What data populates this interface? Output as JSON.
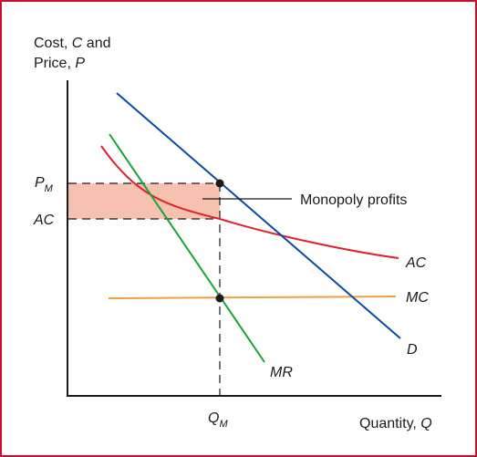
{
  "chart_data": {
    "type": "line",
    "title": "",
    "ylabel_line1": "Cost,",
    "ylabel_line1_var": "C",
    "ylabel_line1_tail": " and",
    "ylabel_line2": "Price,",
    "ylabel_line2_var": "P",
    "xlabel": "Quantity,",
    "xlabel_var": "Q",
    "y_ticks": {
      "pm": "P",
      "pm_sub": "M",
      "ac": "AC"
    },
    "x_ticks": {
      "qm": "Q",
      "qm_sub": "M"
    },
    "annotation": "Monopoly profits",
    "series": [
      {
        "name": "D",
        "color": "#0b4aa2"
      },
      {
        "name": "MR",
        "color": "#1aa33a"
      },
      {
        "name": "AC",
        "color": "#e0202c"
      },
      {
        "name": "MC",
        "color": "#f0a040"
      }
    ],
    "colors": {
      "axis": "#1a1a1a",
      "profit_fill": "#f6c1ae",
      "dash": "#1a1a1a",
      "frame": "#c8102e"
    }
  }
}
